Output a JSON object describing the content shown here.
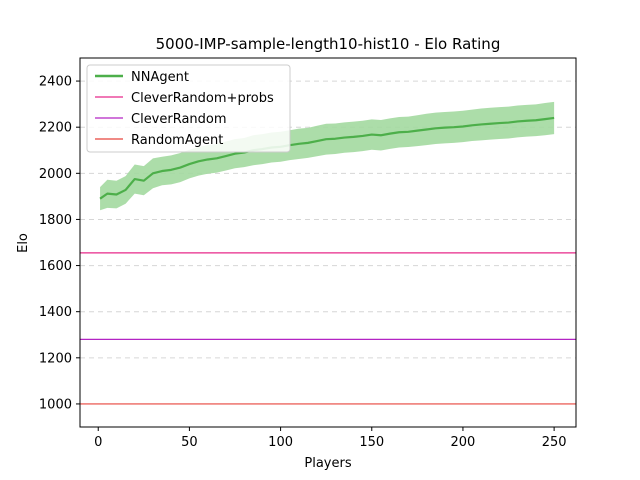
{
  "chart_data": {
    "type": "line",
    "title": "5000-IMP-sample-length10-hist10 - Elo Rating",
    "xlabel": "Players",
    "ylabel": "Elo",
    "xlim": [
      -10,
      262
    ],
    "ylim": [
      900,
      2500
    ],
    "xticks": [
      0,
      50,
      100,
      150,
      200,
      250
    ],
    "yticks": [
      1000,
      1200,
      1400,
      1600,
      1800,
      2000,
      2200,
      2400
    ],
    "grid": "y-dashed",
    "legend": "top-left",
    "series": [
      {
        "name": "NNAgent",
        "color": "#4daf4a",
        "band_color": "#a3d9a0",
        "x": [
          1,
          5,
          10,
          15,
          20,
          25,
          30,
          35,
          40,
          45,
          50,
          55,
          60,
          65,
          70,
          75,
          80,
          85,
          90,
          95,
          100,
          105,
          110,
          115,
          120,
          125,
          130,
          135,
          140,
          145,
          150,
          155,
          160,
          165,
          170,
          175,
          180,
          185,
          190,
          195,
          200,
          205,
          210,
          215,
          220,
          225,
          230,
          235,
          240,
          245,
          250
        ],
        "values": [
          1890,
          1912,
          1908,
          1928,
          1975,
          1968,
          2000,
          2010,
          2015,
          2025,
          2040,
          2052,
          2060,
          2065,
          2075,
          2085,
          2090,
          2100,
          2105,
          2112,
          2115,
          2122,
          2128,
          2132,
          2140,
          2148,
          2150,
          2155,
          2158,
          2162,
          2168,
          2165,
          2172,
          2178,
          2180,
          2185,
          2190,
          2195,
          2198,
          2200,
          2203,
          2208,
          2212,
          2215,
          2218,
          2220,
          2225,
          2228,
          2230,
          2235,
          2240
        ],
        "lower": [
          1840,
          1850,
          1848,
          1868,
          1912,
          1905,
          1935,
          1948,
          1952,
          1962,
          1978,
          1990,
          1998,
          2003,
          2012,
          2022,
          2027,
          2035,
          2040,
          2047,
          2050,
          2057,
          2062,
          2067,
          2074,
          2081,
          2084,
          2089,
          2092,
          2096,
          2102,
          2099,
          2106,
          2112,
          2114,
          2118,
          2122,
          2127,
          2130,
          2132,
          2135,
          2140,
          2143,
          2146,
          2149,
          2151,
          2156,
          2159,
          2161,
          2165,
          2170
        ],
        "upper": [
          1940,
          1972,
          1968,
          1988,
          2038,
          2031,
          2065,
          2072,
          2078,
          2088,
          2102,
          2114,
          2122,
          2127,
          2138,
          2148,
          2153,
          2165,
          2170,
          2177,
          2180,
          2187,
          2194,
          2197,
          2206,
          2215,
          2216,
          2221,
          2224,
          2228,
          2234,
          2231,
          2238,
          2244,
          2246,
          2252,
          2258,
          2263,
          2266,
          2268,
          2271,
          2276,
          2281,
          2284,
          2287,
          2289,
          2294,
          2297,
          2299,
          2305,
          2310
        ]
      },
      {
        "name": "CleverRandom+probs",
        "color": "#e7298a",
        "constant": 1655
      },
      {
        "name": "CleverRandom",
        "color": "#b324c4",
        "constant": 1280
      },
      {
        "name": "RandomAgent",
        "color": "#e8453c",
        "constant": 1000
      }
    ]
  }
}
